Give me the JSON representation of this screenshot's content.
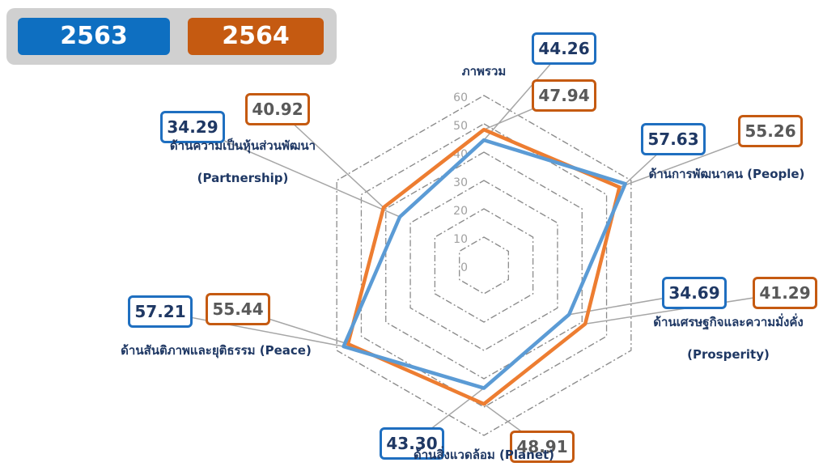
{
  "chart_data": {
    "type": "radar",
    "categories": [
      "ภาพรวม",
      "ด้านการพัฒนาคน (People)",
      "ด้านเศรษฐกิจและความมั่งคั่ง (Prosperity)",
      "ด้านสิ่งแวดล้อม (Planet)",
      "ด้านสันติภาพและยุติธรรม (Peace)",
      "ด้านความเป็นหุ้นส่วนพัฒนา (Partnership)"
    ],
    "series": [
      {
        "name": "2563",
        "color": "#5b9bd5",
        "values": [
          44.26,
          57.63,
          34.69,
          43.3,
          57.21,
          34.29
        ],
        "value_labels": [
          "44.26",
          "57.63",
          "34.69",
          "43.30",
          "57.21",
          "34.29"
        ]
      },
      {
        "name": "2564",
        "color": "#ed7d31",
        "values": [
          47.94,
          55.26,
          41.29,
          48.91,
          55.44,
          40.92
        ],
        "value_labels": [
          "47.94",
          "55.26",
          "41.29",
          "48.91",
          "55.44",
          "40.92"
        ]
      }
    ],
    "ylim": [
      0,
      60
    ],
    "yticks": [
      0,
      10,
      20,
      30,
      40,
      50,
      60
    ],
    "grid": true
  }
}
